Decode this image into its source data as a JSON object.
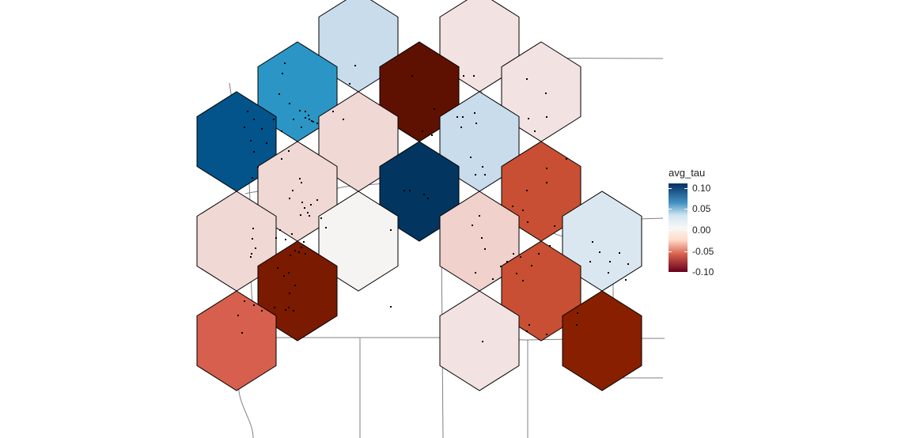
{
  "legend": {
    "title": "avg_tau",
    "ticks": [
      {
        "label": "0.10",
        "value": 0.1
      },
      {
        "label": "0.05",
        "value": 0.05
      },
      {
        "label": "0.00",
        "value": 0.0
      },
      {
        "label": "-0.05",
        "value": -0.05
      },
      {
        "label": "-0.10",
        "value": -0.1
      }
    ]
  },
  "colors": {
    "hex_stroke": "#000000",
    "boundary_stroke": "#808080",
    "point_fill": "#000000"
  },
  "hexagons": [
    {
      "id": "h01",
      "value": 0.04,
      "fill": "#c9dceb"
    },
    {
      "id": "h02",
      "value": -0.02,
      "fill": "#f2e2e1"
    },
    {
      "id": "h03",
      "value": 0.08,
      "fill": "#2b96c6"
    },
    {
      "id": "h04",
      "value": -0.1,
      "fill": "#5e1100"
    },
    {
      "id": "h05",
      "value": -0.02,
      "fill": "#f2e2e1"
    },
    {
      "id": "h06",
      "value": 0.1,
      "fill": "#03548a"
    },
    {
      "id": "h07",
      "value": -0.02,
      "fill": "#f0d8d5"
    },
    {
      "id": "h08",
      "value": 0.04,
      "fill": "#c9dceb"
    },
    {
      "id": "h09",
      "value": -0.02,
      "fill": "#f0d8d5"
    },
    {
      "id": "h10",
      "value": 0.12,
      "fill": "#023560"
    },
    {
      "id": "h11",
      "value": -0.07,
      "fill": "#c84f33"
    },
    {
      "id": "h12",
      "value": -0.02,
      "fill": "#f0d8d5"
    },
    {
      "id": "h13",
      "value": 0.0,
      "fill": "#f5f4f3"
    },
    {
      "id": "h14",
      "value": -0.02,
      "fill": "#f0d1cc"
    },
    {
      "id": "h15",
      "value": 0.02,
      "fill": "#dbe7f0"
    },
    {
      "id": "h16",
      "value": -0.1,
      "fill": "#7a1a00"
    },
    {
      "id": "h17",
      "value": -0.07,
      "fill": "#c84f33"
    },
    {
      "id": "h18",
      "value": -0.06,
      "fill": "#d6604d"
    },
    {
      "id": "h19",
      "value": -0.02,
      "fill": "#f2e2e1"
    },
    {
      "id": "h20",
      "value": -0.1,
      "fill": "#882000"
    }
  ]
}
